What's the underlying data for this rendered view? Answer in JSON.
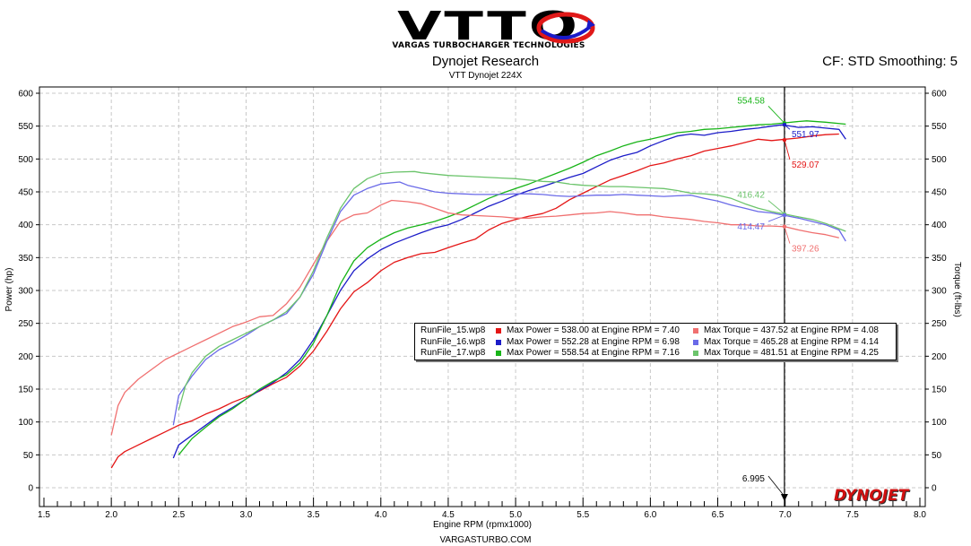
{
  "header": {
    "logo_text": "VTTO",
    "logo_subtitle": "VARGAS TURBOCHARGER TECHNOLOGIES",
    "title": "Dynojet Research",
    "subtitle": "VTT Dynojet 224X",
    "cf_label": "CF: STD Smoothing: 5"
  },
  "footer": {
    "text": "VARGASTURBO.COM",
    "brand": "DYNOJET"
  },
  "colors": {
    "run15_power": "#e41616",
    "run16_power": "#1c1cc8",
    "run17_power": "#18b418",
    "run15_torque": "#f07070",
    "run16_torque": "#6a6ae8",
    "run17_torque": "#6cc46c"
  },
  "legend": [
    {
      "file": "RunFile_15.wp8",
      "power": "Max Power = 538.00 at Engine RPM = 7.40",
      "torque": "Max Torque = 437.52 at Engine RPM = 4.08"
    },
    {
      "file": "RunFile_16.wp8",
      "power": "Max Power = 552.28 at Engine RPM = 6.98",
      "torque": "Max Torque = 465.28 at Engine RPM = 4.14"
    },
    {
      "file": "RunFile_17.wp8",
      "power": "Max Power = 558.54 at Engine RPM = 7.16",
      "torque": "Max Torque = 481.51 at Engine RPM = 4.25"
    }
  ],
  "chart_data": {
    "type": "line",
    "title": "Dynojet Research",
    "xlabel": "Engine RPM (rpmx1000)",
    "ylabel": "Power (hp)",
    "y2label": "Torque (ft-lbs)",
    "xlim": [
      1.5,
      8.0
    ],
    "ylim": [
      0,
      600
    ],
    "y2lim": [
      0,
      600
    ],
    "x_ticks": [
      "1.5",
      "2.0",
      "2.5",
      "3.0",
      "3.5",
      "4.0",
      "4.5",
      "5.0",
      "5.5",
      "6.0",
      "6.5",
      "7.0",
      "7.5",
      "8.0"
    ],
    "y_ticks": [
      "0",
      "50",
      "100",
      "150",
      "200",
      "250",
      "300",
      "350",
      "400",
      "450",
      "500",
      "550",
      "600"
    ],
    "cursor": {
      "x": 6.995,
      "label": "6.995"
    },
    "annotations": [
      {
        "text": "554.58",
        "x": 6.995,
        "y": 554.58,
        "color_key": "run17_power"
      },
      {
        "text": "551.97",
        "x": 6.995,
        "y": 551.97,
        "color_key": "run16_power"
      },
      {
        "text": "529.07",
        "x": 6.995,
        "y": 529.07,
        "color_key": "run15_power"
      },
      {
        "text": "416.42",
        "x": 6.995,
        "y": 416.42,
        "color_key": "run17_torque"
      },
      {
        "text": "414.47",
        "x": 6.995,
        "y": 414.47,
        "color_key": "run16_torque"
      },
      {
        "text": "397.26",
        "x": 6.995,
        "y": 397.26,
        "color_key": "run15_torque"
      }
    ],
    "series": [
      {
        "name": "RunFile_15 Power",
        "color_key": "run15_power",
        "x": [
          2.0,
          2.05,
          2.1,
          2.2,
          2.3,
          2.4,
          2.5,
          2.6,
          2.7,
          2.8,
          2.9,
          3.0,
          3.1,
          3.2,
          3.3,
          3.4,
          3.5,
          3.6,
          3.7,
          3.8,
          3.9,
          4.0,
          4.1,
          4.2,
          4.3,
          4.4,
          4.5,
          4.6,
          4.7,
          4.8,
          4.9,
          5.0,
          5.1,
          5.2,
          5.3,
          5.4,
          5.5,
          5.6,
          5.7,
          5.8,
          5.9,
          6.0,
          6.1,
          6.2,
          6.3,
          6.4,
          6.5,
          6.6,
          6.7,
          6.8,
          6.9,
          7.0,
          7.1,
          7.2,
          7.3,
          7.4
        ],
        "values": [
          30,
          47,
          55,
          65,
          75,
          85,
          95,
          102,
          112,
          120,
          130,
          138,
          147,
          158,
          168,
          185,
          208,
          238,
          272,
          298,
          312,
          330,
          343,
          350,
          356,
          358,
          365,
          372,
          378,
          392,
          402,
          408,
          413,
          417,
          425,
          438,
          448,
          458,
          468,
          475,
          482,
          490,
          494,
          500,
          505,
          512,
          516,
          520,
          525,
          530,
          528,
          530,
          532,
          535,
          537,
          538
        ]
      },
      {
        "name": "RunFile_16 Power",
        "color_key": "run16_power",
        "x": [
          2.46,
          2.5,
          2.6,
          2.7,
          2.8,
          2.9,
          3.0,
          3.1,
          3.2,
          3.3,
          3.4,
          3.5,
          3.6,
          3.7,
          3.8,
          3.9,
          4.0,
          4.1,
          4.2,
          4.3,
          4.4,
          4.5,
          4.6,
          4.7,
          4.8,
          4.9,
          5.0,
          5.1,
          5.2,
          5.3,
          5.4,
          5.5,
          5.6,
          5.7,
          5.8,
          5.9,
          6.0,
          6.1,
          6.2,
          6.3,
          6.4,
          6.5,
          6.6,
          6.7,
          6.8,
          6.9,
          6.98,
          7.1,
          7.2,
          7.3,
          7.4,
          7.45
        ],
        "values": [
          45,
          65,
          80,
          95,
          110,
          122,
          135,
          148,
          160,
          175,
          195,
          225,
          262,
          300,
          330,
          348,
          362,
          372,
          380,
          388,
          395,
          400,
          408,
          418,
          428,
          436,
          445,
          452,
          458,
          465,
          472,
          478,
          488,
          498,
          505,
          510,
          520,
          528,
          535,
          538,
          536,
          540,
          542,
          545,
          547,
          550,
          552,
          548,
          549,
          547,
          545,
          530
        ]
      },
      {
        "name": "RunFile_17 Power",
        "color_key": "run17_power",
        "x": [
          2.5,
          2.6,
          2.7,
          2.8,
          2.9,
          3.0,
          3.1,
          3.2,
          3.3,
          3.4,
          3.5,
          3.6,
          3.7,
          3.8,
          3.9,
          4.0,
          4.1,
          4.2,
          4.3,
          4.4,
          4.5,
          4.6,
          4.7,
          4.8,
          4.9,
          5.0,
          5.1,
          5.2,
          5.3,
          5.4,
          5.5,
          5.6,
          5.7,
          5.8,
          5.9,
          6.0,
          6.1,
          6.2,
          6.3,
          6.4,
          6.5,
          6.6,
          6.7,
          6.8,
          6.9,
          7.0,
          7.1,
          7.16,
          7.3,
          7.45
        ],
        "values": [
          50,
          75,
          92,
          108,
          120,
          135,
          150,
          162,
          172,
          190,
          220,
          262,
          310,
          345,
          365,
          378,
          388,
          395,
          400,
          405,
          412,
          420,
          430,
          440,
          448,
          455,
          462,
          470,
          478,
          486,
          495,
          505,
          512,
          520,
          526,
          530,
          535,
          540,
          542,
          545,
          546,
          548,
          550,
          552,
          553,
          555,
          557,
          558,
          556,
          553
        ]
      },
      {
        "name": "RunFile_15 Torque",
        "color_key": "run15_torque",
        "x": [
          2.0,
          2.05,
          2.1,
          2.2,
          2.3,
          2.4,
          2.5,
          2.6,
          2.7,
          2.8,
          2.9,
          3.0,
          3.1,
          3.2,
          3.3,
          3.4,
          3.5,
          3.6,
          3.7,
          3.8,
          3.9,
          4.0,
          4.08,
          4.2,
          4.3,
          4.4,
          4.5,
          4.6,
          4.7,
          4.8,
          4.9,
          5.0,
          5.1,
          5.2,
          5.3,
          5.4,
          5.5,
          5.6,
          5.7,
          5.8,
          5.9,
          6.0,
          6.1,
          6.2,
          6.3,
          6.4,
          6.5,
          6.6,
          6.7,
          6.8,
          6.9,
          7.0,
          7.1,
          7.2,
          7.3,
          7.4
        ],
        "values": [
          80,
          125,
          145,
          165,
          180,
          195,
          205,
          215,
          225,
          235,
          245,
          252,
          260,
          262,
          280,
          305,
          340,
          375,
          405,
          415,
          418,
          430,
          437,
          435,
          432,
          425,
          418,
          415,
          414,
          413,
          412,
          410,
          410,
          412,
          413,
          415,
          417,
          418,
          420,
          418,
          415,
          415,
          412,
          410,
          408,
          405,
          403,
          400,
          400,
          398,
          398,
          397,
          392,
          388,
          385,
          380
        ]
      },
      {
        "name": "RunFile_16 Torque",
        "color_key": "run16_torque",
        "x": [
          2.46,
          2.5,
          2.6,
          2.7,
          2.8,
          2.9,
          3.0,
          3.1,
          3.2,
          3.3,
          3.4,
          3.5,
          3.6,
          3.7,
          3.8,
          3.9,
          4.0,
          4.14,
          4.2,
          4.3,
          4.4,
          4.5,
          4.6,
          4.7,
          4.8,
          4.9,
          5.0,
          5.1,
          5.2,
          5.3,
          5.4,
          5.5,
          5.6,
          5.7,
          5.8,
          5.9,
          6.0,
          6.1,
          6.2,
          6.3,
          6.4,
          6.5,
          6.6,
          6.7,
          6.8,
          6.9,
          7.0,
          7.1,
          7.2,
          7.3,
          7.4,
          7.45
        ],
        "values": [
          95,
          140,
          170,
          195,
          210,
          220,
          232,
          245,
          255,
          265,
          290,
          325,
          375,
          420,
          445,
          455,
          462,
          465,
          460,
          455,
          450,
          448,
          447,
          446,
          446,
          446,
          447,
          447,
          446,
          444,
          443,
          444,
          445,
          445,
          446,
          445,
          444,
          443,
          444,
          445,
          440,
          436,
          430,
          425,
          420,
          418,
          414,
          410,
          405,
          400,
          392,
          375
        ]
      },
      {
        "name": "RunFile_17 Torque",
        "color_key": "run17_torque",
        "x": [
          2.5,
          2.55,
          2.6,
          2.7,
          2.8,
          2.9,
          3.0,
          3.1,
          3.2,
          3.3,
          3.4,
          3.5,
          3.6,
          3.7,
          3.8,
          3.9,
          4.0,
          4.1,
          4.25,
          4.3,
          4.4,
          4.5,
          4.6,
          4.7,
          4.8,
          4.9,
          5.0,
          5.1,
          5.2,
          5.3,
          5.4,
          5.5,
          5.6,
          5.7,
          5.8,
          5.9,
          6.0,
          6.1,
          6.2,
          6.3,
          6.4,
          6.5,
          6.6,
          6.7,
          6.8,
          6.9,
          7.0,
          7.1,
          7.2,
          7.3,
          7.45
        ],
        "values": [
          118,
          155,
          175,
          200,
          215,
          225,
          235,
          245,
          255,
          268,
          290,
          330,
          380,
          425,
          455,
          470,
          478,
          480,
          481,
          479,
          477,
          475,
          474,
          473,
          472,
          471,
          470,
          468,
          466,
          465,
          462,
          460,
          459,
          458,
          458,
          457,
          456,
          455,
          452,
          448,
          447,
          445,
          440,
          432,
          425,
          420,
          416,
          412,
          408,
          402,
          390
        ]
      }
    ]
  }
}
